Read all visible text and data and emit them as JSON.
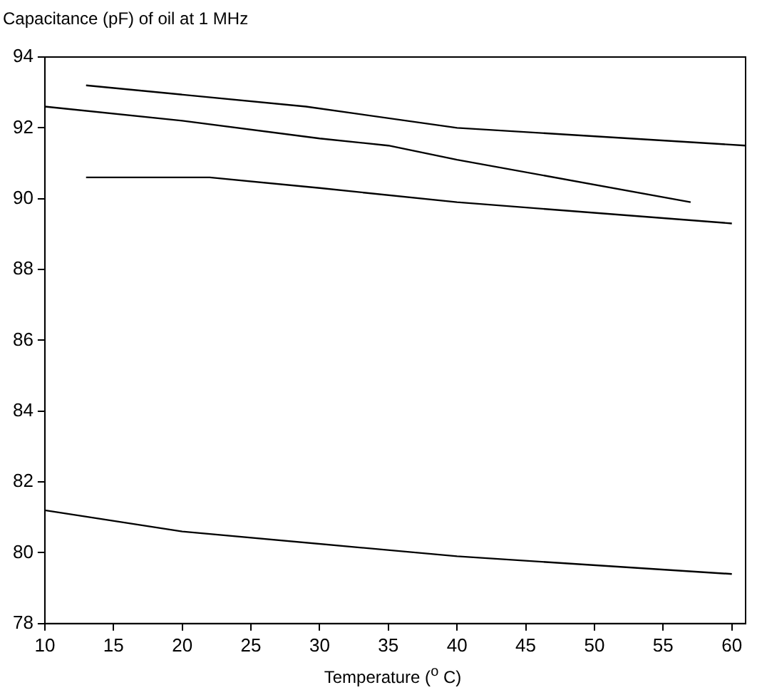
{
  "chart_data": {
    "type": "line",
    "title": "Capacitance (pF) of oil at 1 MHz",
    "xlabel": "Temperature ($^{o}$ C)",
    "xlim": [
      10,
      61
    ],
    "xticks": [
      10,
      15,
      20,
      25,
      30,
      35,
      40,
      45,
      50,
      55,
      60
    ],
    "ylim": [
      78,
      94
    ],
    "yticks": [
      78,
      80,
      82,
      84,
      86,
      88,
      90,
      92,
      94
    ],
    "grid": false,
    "legend": false,
    "marker": "none",
    "line_style": "solid",
    "series": [
      {
        "color": "#000000",
        "x": [
          13,
          29,
          40,
          61
        ],
        "values": [
          93.2,
          92.6,
          92.0,
          91.5
        ]
      },
      {
        "color": "#000000",
        "x": [
          10,
          20,
          30,
          35,
          40,
          57
        ],
        "values": [
          92.6,
          92.2,
          91.7,
          91.5,
          91.1,
          89.9
        ]
      },
      {
        "color": "#000000",
        "x": [
          13,
          22,
          30,
          40,
          60
        ],
        "values": [
          90.6,
          90.6,
          90.3,
          89.9,
          89.3
        ]
      },
      {
        "color": "#000000",
        "x": [
          10,
          20,
          40,
          60
        ],
        "values": [
          81.2,
          80.6,
          79.9,
          79.4
        ]
      }
    ]
  }
}
